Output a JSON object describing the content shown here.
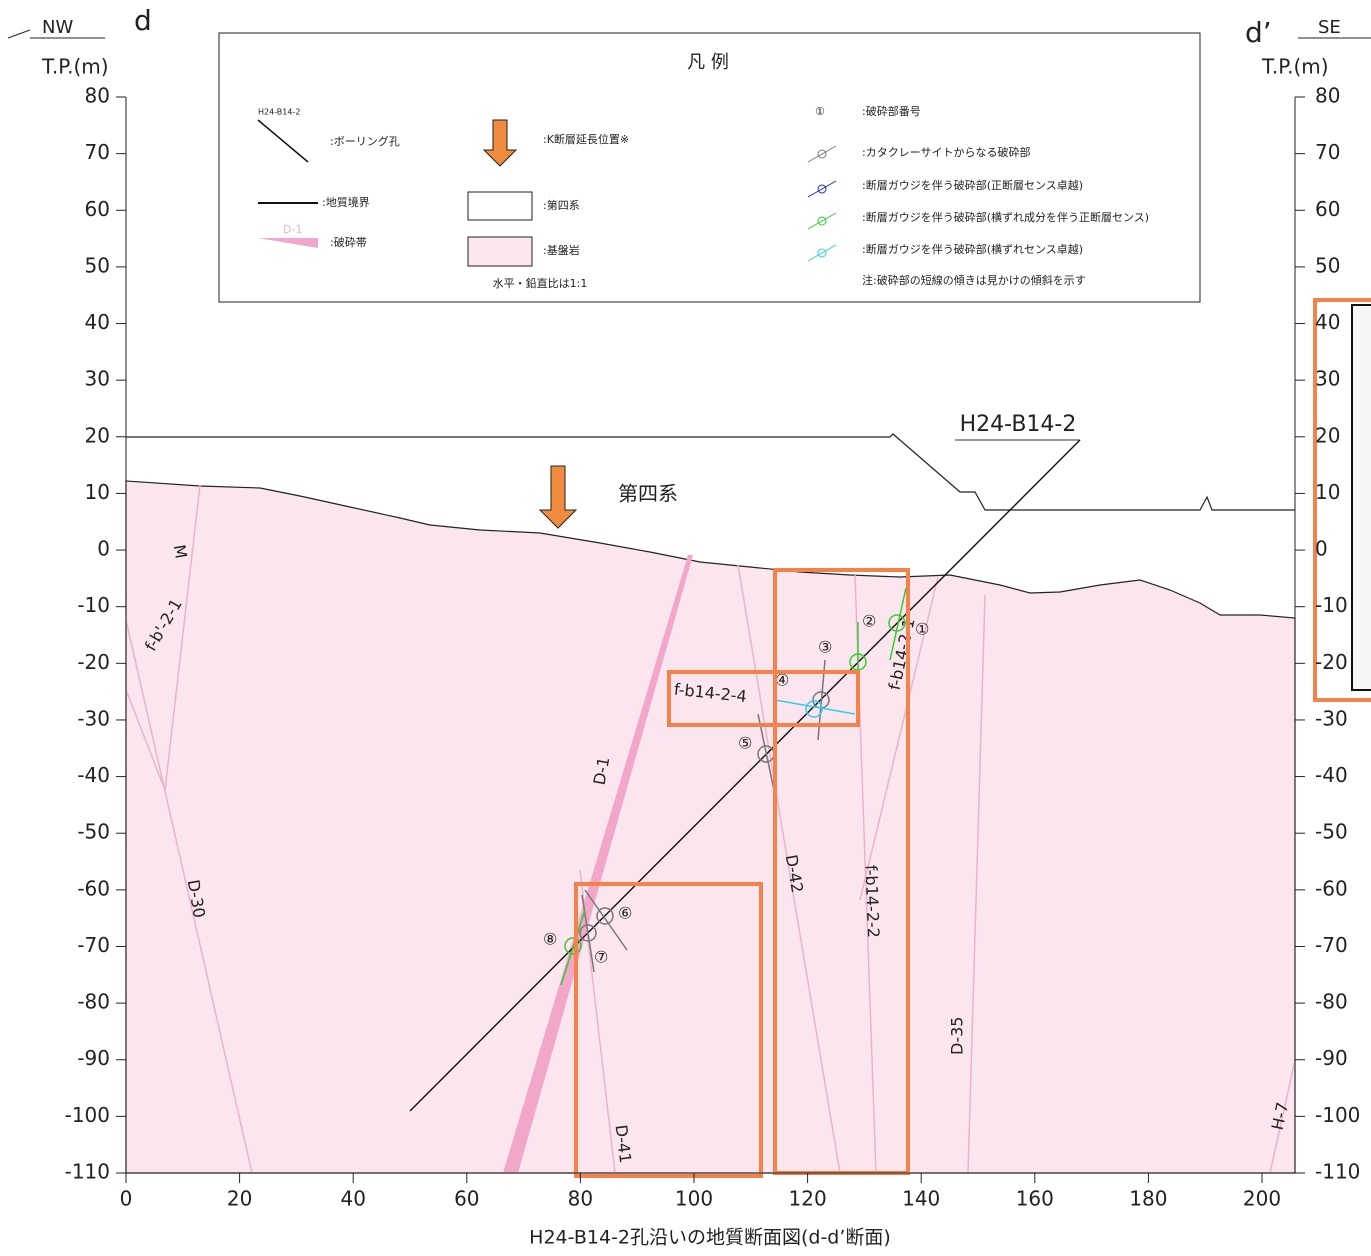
{
  "header": {
    "left_direction": "NW",
    "left_label": "d",
    "right_label": "d’",
    "right_direction": "SE"
  },
  "axes": {
    "left_title": "T.P.(m)",
    "right_title": "T.P.(m)",
    "xlim": [
      0,
      200
    ],
    "xticks": [
      0,
      20,
      40,
      60,
      80,
      100,
      120,
      140,
      160,
      180,
      200
    ],
    "ylim": [
      -110,
      80
    ],
    "yticks": [
      80,
      70,
      60,
      50,
      40,
      30,
      20,
      10,
      0,
      -10,
      -20,
      -30,
      -40,
      -50,
      -60,
      -70,
      -80,
      -90,
      -100,
      -110
    ]
  },
  "legend": {
    "title": "凡 例",
    "borehole_sample": "H24-B14-2",
    "borehole": ":ボーリング孔",
    "boundary": ":地質境界",
    "fracture_zone_sample": "D-1",
    "fracture_zone": ":破砕帯",
    "k_fault": ":K断層延長位置※",
    "quaternary": ":第四系",
    "bedrock": ":基盤岩",
    "ratio": "水平・鉛直比は1:1",
    "number_sample": "①",
    "number": ":破砕部番号",
    "cataclasite": ":カタクレーサイトからなる破砕部",
    "gouge_normal": ":断層ガウジを伴う破砕部(正断層センス卓越)",
    "gouge_oblique": ":断層ガウジを伴う破砕部(横ずれ成分を伴う正断層センス)",
    "gouge_strike": ":断層ガウジを伴う破砕部(横ずれセンス卓越)",
    "note": "注:破砕部の短線の傾きは見かけの傾斜を示す"
  },
  "annotations": {
    "borehole": "H24-B14-2",
    "quaternary": "第四系",
    "faults": [
      "f-b'-2-1",
      "M",
      "D-30",
      "D-1",
      "D-42",
      "f-b14-2-2",
      "f-b14-2-4",
      "f-b14-2-1",
      "D-41",
      "D-35",
      "H-7"
    ],
    "numbers": [
      "①",
      "②",
      "③",
      "④",
      "⑤",
      "⑥",
      "⑦",
      "⑧"
    ]
  },
  "caption": "H24-B14-2孔沿いの地質断面図(d-d’断面)"
}
